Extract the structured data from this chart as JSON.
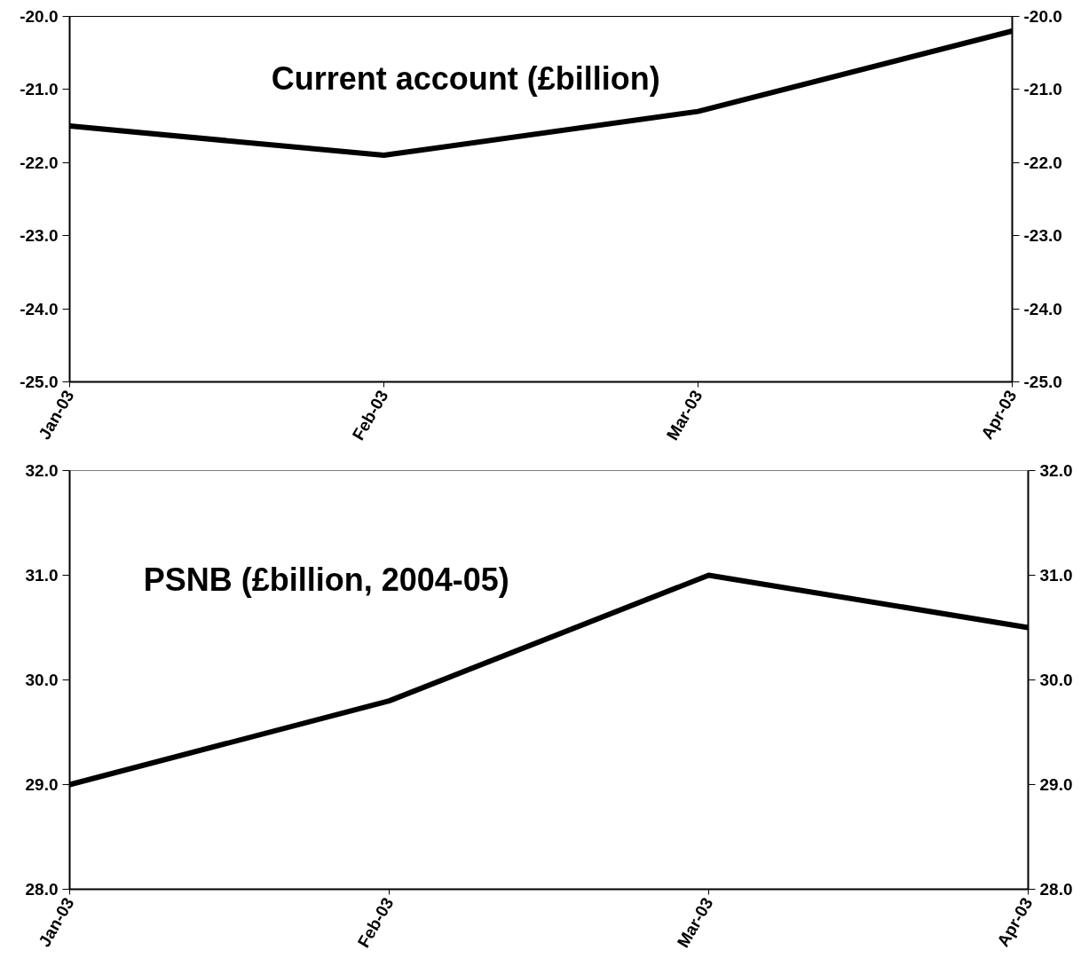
{
  "chart_data": [
    {
      "type": "line",
      "title": "Current account (£billion)",
      "categories": [
        "Jan-03",
        "Feb-03",
        "Mar-03",
        "Apr-03"
      ],
      "series": [
        {
          "color": "#000000",
          "values": [
            -21.5,
            -21.9,
            -21.3,
            -20.2
          ]
        }
      ],
      "line_style": "solid",
      "ylim": [
        -25,
        -20
      ],
      "yticks": [
        {
          "value": -25,
          "label": "-25.0"
        },
        {
          "value": -24,
          "label": "-24.0"
        },
        {
          "value": -23,
          "label": "-23.0"
        },
        {
          "value": -22,
          "label": "-22.0"
        },
        {
          "value": -21,
          "label": "-21.0"
        },
        {
          "value": -20,
          "label": "-20.0"
        }
      ],
      "y2lim": [
        -25,
        -20
      ],
      "y2ticks": [
        {
          "value": -25,
          "label": "-25.0"
        },
        {
          "value": -24,
          "label": "-24.0"
        },
        {
          "value": -23,
          "label": "-23.0"
        },
        {
          "value": -22,
          "label": "-22.0"
        },
        {
          "value": -21,
          "label": "-21.0"
        },
        {
          "value": -20,
          "label": "-20.0"
        }
      ]
    },
    {
      "type": "line",
      "title": "PSNB (£billion, 2004-05)",
      "categories": [
        "Jan-03",
        "Feb-03",
        "Mar-03",
        "Apr-03"
      ],
      "series": [
        {
          "color": "#000000",
          "values": [
            29.0,
            29.8,
            31.0,
            30.5
          ]
        }
      ],
      "line_style": "solid",
      "ylim": [
        28,
        32
      ],
      "yticks": [
        {
          "value": 28,
          "label": "28.0"
        },
        {
          "value": 29,
          "label": "29.0"
        },
        {
          "value": 30,
          "label": "30.0"
        },
        {
          "value": 31,
          "label": "31.0"
        },
        {
          "value": 32,
          "label": "32.0"
        }
      ],
      "y2lim": [
        28,
        32
      ],
      "y2ticks": [
        {
          "value": 28,
          "label": "28.0"
        },
        {
          "value": 29,
          "label": "29.0"
        },
        {
          "value": 30,
          "label": "30.0"
        },
        {
          "value": 31,
          "label": "31.0"
        },
        {
          "value": 32,
          "label": "32.0"
        }
      ]
    }
  ]
}
